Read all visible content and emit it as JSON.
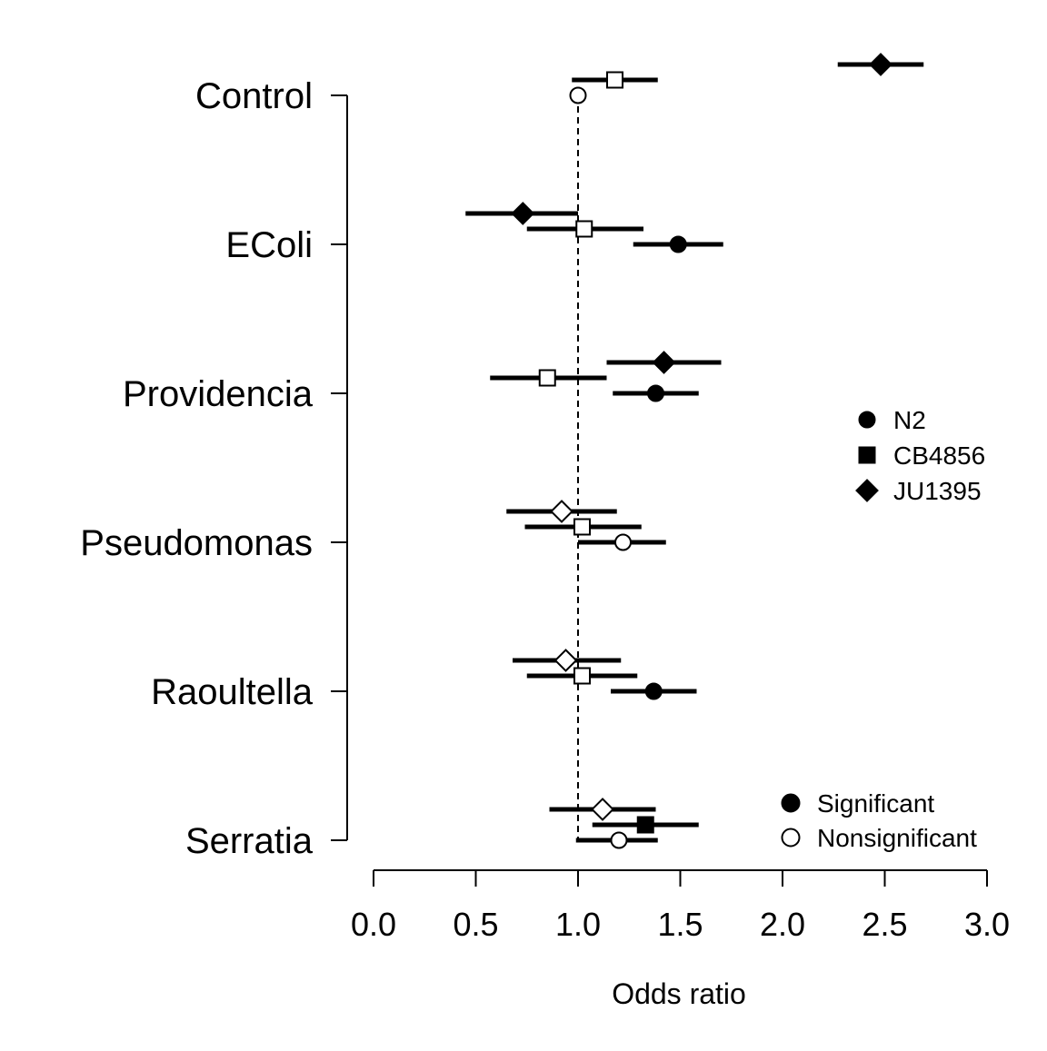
{
  "chart_data": {
    "type": "scatter",
    "title": "",
    "xlabel": "Odds ratio",
    "ylabel": "",
    "xlim": [
      0,
      3
    ],
    "x_ticks": [
      "0.0",
      "0.5",
      "1.0",
      "1.5",
      "2.0",
      "2.5",
      "3.0"
    ],
    "reference_line": {
      "x": 1.0,
      "style": "dashed"
    },
    "grid": false,
    "categories": [
      "Control",
      "EColi",
      "Providencia",
      "Pseudomonas",
      "Raoultella",
      "Serratia"
    ],
    "strains": [
      {
        "name": "N2",
        "shape": "circle"
      },
      {
        "name": "CB4856",
        "shape": "square"
      },
      {
        "name": "JU1395",
        "shape": "diamond"
      }
    ],
    "significance_legend": [
      {
        "label": "Significant",
        "fill": "#000000"
      },
      {
        "label": "Nonsignificant",
        "fill": "#ffffff"
      }
    ],
    "legend_placement": "right",
    "series": [
      {
        "name": "N2",
        "points": [
          {
            "category": "Control",
            "or": 1.0,
            "lo": 1.0,
            "hi": 1.0,
            "significant": false
          },
          {
            "category": "EColi",
            "or": 1.49,
            "lo": 1.27,
            "hi": 1.71,
            "significant": true
          },
          {
            "category": "Providencia",
            "or": 1.38,
            "lo": 1.17,
            "hi": 1.59,
            "significant": true
          },
          {
            "category": "Pseudomonas",
            "or": 1.22,
            "lo": 1.0,
            "hi": 1.43,
            "significant": false
          },
          {
            "category": "Raoultella",
            "or": 1.37,
            "lo": 1.16,
            "hi": 1.58,
            "significant": true
          },
          {
            "category": "Serratia",
            "or": 1.2,
            "lo": 0.99,
            "hi": 1.39,
            "significant": false
          }
        ]
      },
      {
        "name": "CB4856",
        "points": [
          {
            "category": "Control",
            "or": 1.18,
            "lo": 0.97,
            "hi": 1.39,
            "significant": false
          },
          {
            "category": "EColi",
            "or": 1.03,
            "lo": 0.75,
            "hi": 1.32,
            "significant": false
          },
          {
            "category": "Providencia",
            "or": 0.85,
            "lo": 0.57,
            "hi": 1.14,
            "significant": false
          },
          {
            "category": "Pseudomonas",
            "or": 1.02,
            "lo": 0.74,
            "hi": 1.31,
            "significant": false
          },
          {
            "category": "Raoultella",
            "or": 1.02,
            "lo": 0.75,
            "hi": 1.29,
            "significant": false
          },
          {
            "category": "Serratia",
            "or": 1.33,
            "lo": 1.07,
            "hi": 1.59,
            "significant": true
          }
        ]
      },
      {
        "name": "JU1395",
        "points": [
          {
            "category": "Control",
            "or": 2.48,
            "lo": 2.27,
            "hi": 2.69,
            "significant": true
          },
          {
            "category": "EColi",
            "or": 0.73,
            "lo": 0.45,
            "hi": 1.0,
            "significant": true
          },
          {
            "category": "Providencia",
            "or": 1.42,
            "lo": 1.14,
            "hi": 1.7,
            "significant": true
          },
          {
            "category": "Pseudomonas",
            "or": 0.92,
            "lo": 0.65,
            "hi": 1.19,
            "significant": false
          },
          {
            "category": "Raoultella",
            "or": 0.94,
            "lo": 0.68,
            "hi": 1.21,
            "significant": false
          },
          {
            "category": "Serratia",
            "or": 1.12,
            "lo": 0.86,
            "hi": 1.38,
            "significant": false
          }
        ]
      }
    ]
  }
}
